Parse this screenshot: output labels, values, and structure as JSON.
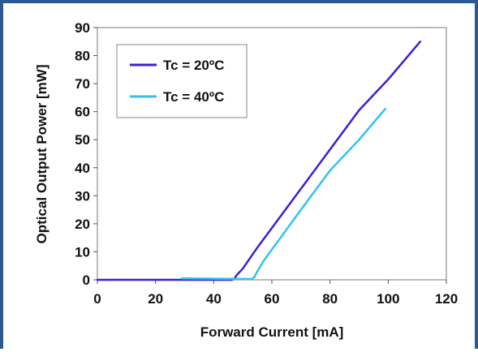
{
  "chart_data": {
    "type": "line",
    "title": "",
    "xlabel": "Forward Current [mA]",
    "ylabel": "Optical Output Power [mW]",
    "xlim": [
      0,
      120
    ],
    "ylim": [
      0,
      90
    ],
    "xticks": [
      0,
      20,
      40,
      60,
      80,
      100,
      120
    ],
    "yticks": [
      0,
      10,
      20,
      30,
      40,
      50,
      60,
      70,
      80,
      90
    ],
    "grid": false,
    "legend_position": "top-left",
    "series": [
      {
        "name": "Tc = 20ºC",
        "color": "#3a1fd8",
        "points": [
          [
            0,
            0
          ],
          [
            46,
            0
          ],
          [
            47,
            0.3
          ],
          [
            48,
            1.8
          ],
          [
            50,
            4
          ],
          [
            52,
            7
          ],
          [
            55,
            11.5
          ],
          [
            60,
            18.5
          ],
          [
            70,
            32.5
          ],
          [
            80,
            46.5
          ],
          [
            90,
            60.5
          ],
          [
            100,
            71.5
          ],
          [
            111,
            85
          ]
        ]
      },
      {
        "name": "Tc = 40ºC",
        "color": "#2ec4ee",
        "points": [
          [
            29,
            0.5
          ],
          [
            53,
            0.3
          ],
          [
            54,
            1
          ],
          [
            55,
            3
          ],
          [
            57,
            6.5
          ],
          [
            60,
            10.8
          ],
          [
            70,
            25
          ],
          [
            80,
            39
          ],
          [
            90,
            50
          ],
          [
            99,
            61
          ]
        ]
      }
    ]
  }
}
